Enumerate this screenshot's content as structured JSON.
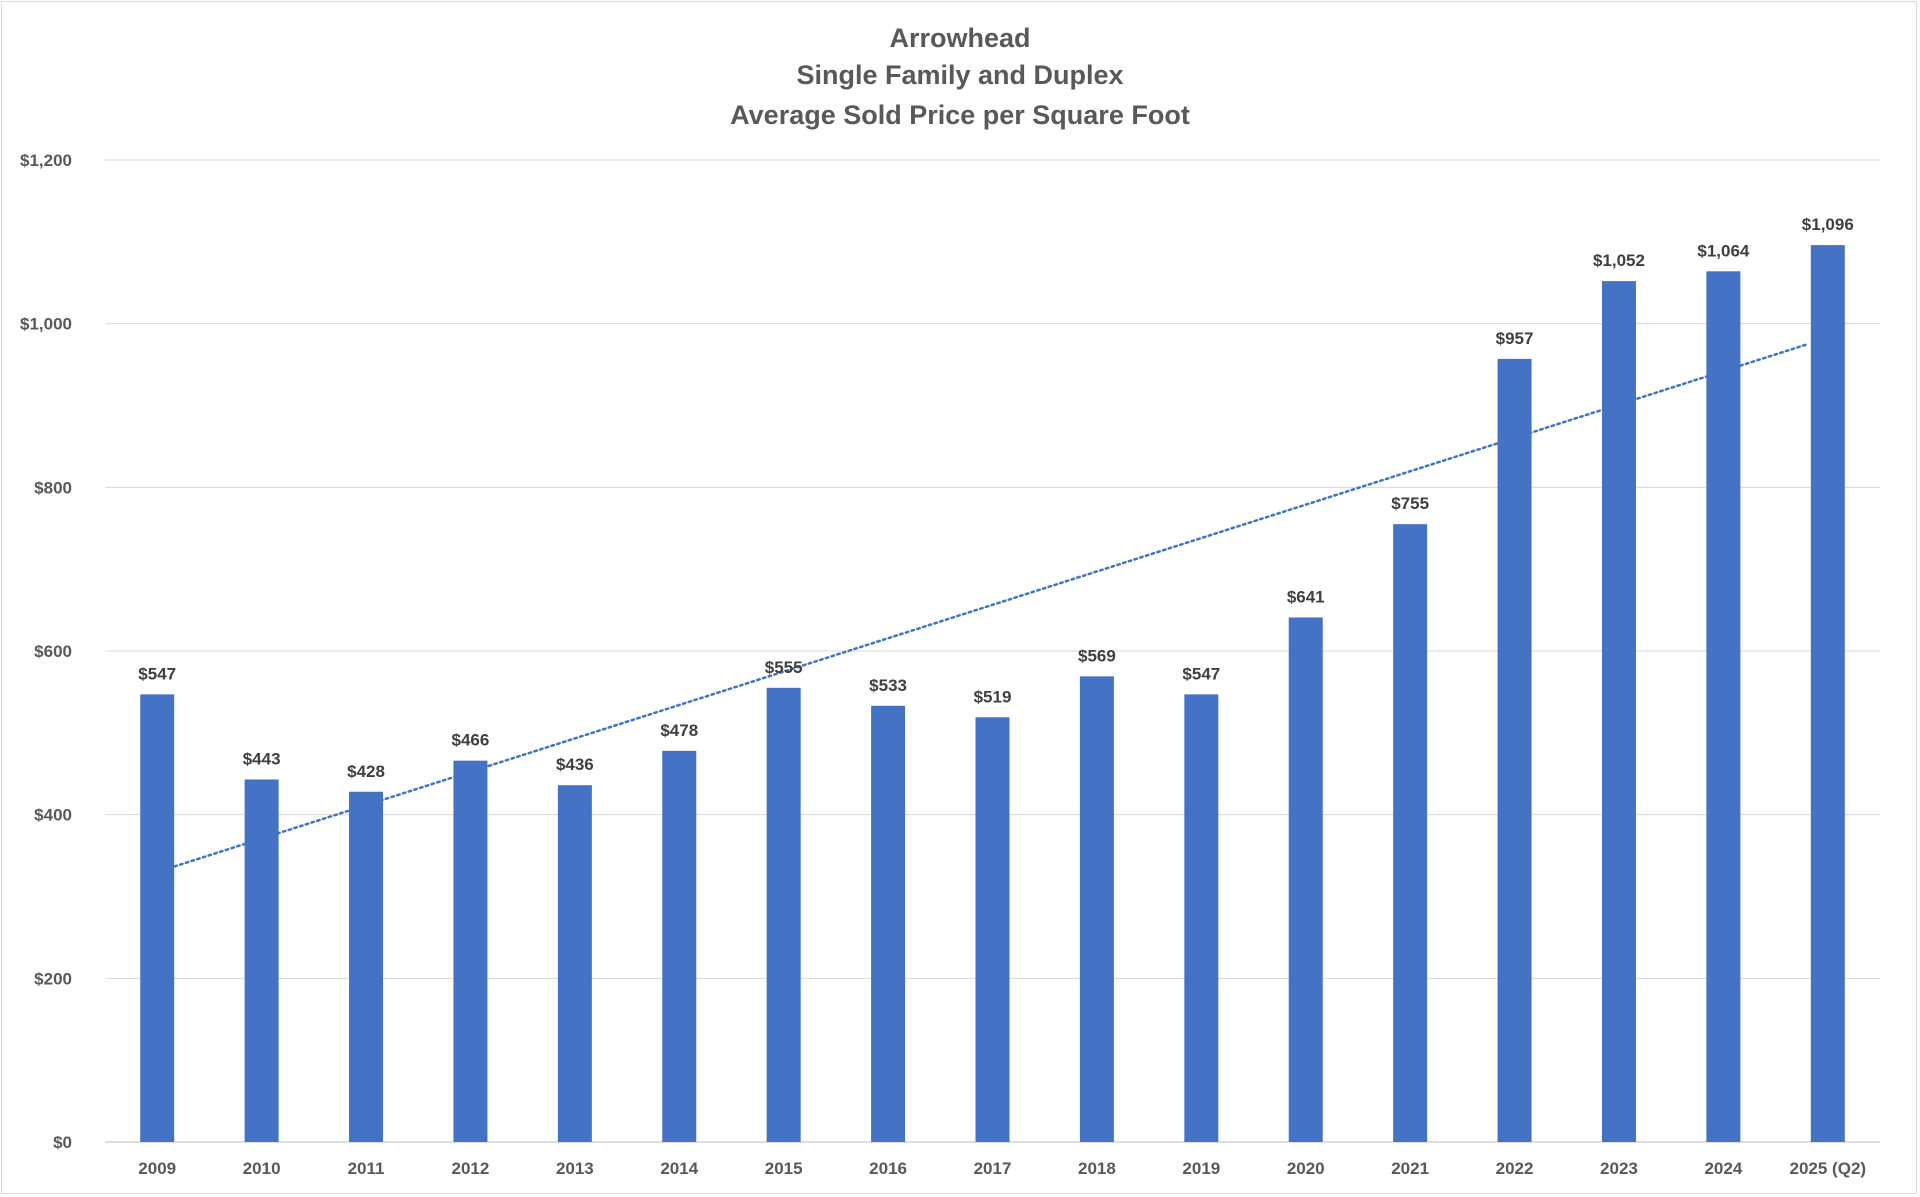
{
  "chart_data": {
    "type": "bar",
    "title": [
      "Arrowhead",
      "Single Family and Duplex",
      "Average Sold Price per Square Foot"
    ],
    "categories": [
      "2009",
      "2010",
      "2011",
      "2012",
      "2013",
      "2014",
      "2015",
      "2016",
      "2017",
      "2018",
      "2019",
      "2020",
      "2021",
      "2022",
      "2023",
      "2024",
      "2025 (Q2)"
    ],
    "series": [
      {
        "values": [
          547,
          443,
          428,
          466,
          436,
          478,
          555,
          533,
          519,
          569,
          547,
          641,
          755,
          957,
          1052,
          1064,
          1096
        ],
        "data_labels": [
          "$547",
          "$443",
          "$428",
          "$466",
          "$436",
          "$478",
          "$555",
          "$533",
          "$519",
          "$569",
          "$547",
          "$641",
          "$755",
          "$957",
          "$1,052",
          "$1,064",
          "$1,096"
        ],
        "color": "#4472c4"
      }
    ],
    "trendline": {
      "type": "linear",
      "style": "dotted",
      "color": "#4472c4",
      "start_value": 330,
      "end_value": 975
    },
    "ylim": [
      0,
      1200
    ],
    "y_ticks": [
      0,
      200,
      400,
      600,
      800,
      1000,
      1200
    ],
    "y_tick_labels": [
      "$0",
      "$200",
      "$400",
      "$600",
      "$800",
      "$1,000",
      "$1,200"
    ],
    "xlabel": "",
    "ylabel": "",
    "grid": true,
    "legend": "none",
    "colors": {
      "bar": "#4472c4",
      "grid": "#d9d9d9",
      "axis_text": "#595959",
      "label_text": "#404040"
    }
  }
}
